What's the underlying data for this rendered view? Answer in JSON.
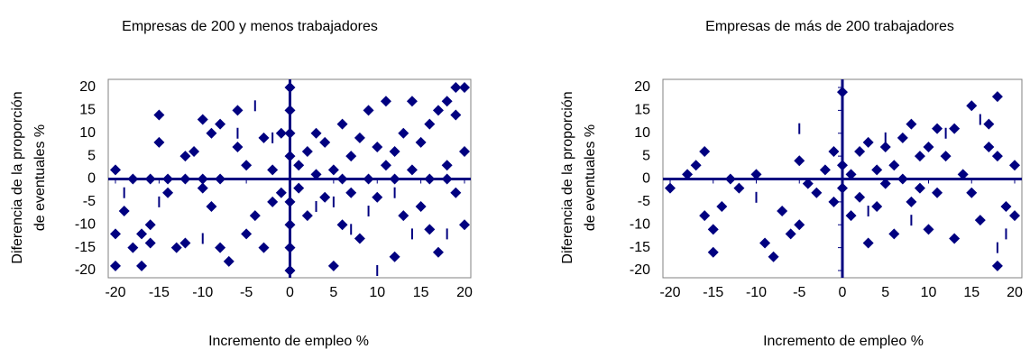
{
  "chart_data": [
    {
      "type": "scatter",
      "title": "Empresas de 200  y menos trabajadores",
      "xlabel": "Incremento de empleo %",
      "ylabel": [
        "Diferencia de la proporción",
        "de eventuales %"
      ],
      "xlim": [
        -20,
        20
      ],
      "ylim": [
        -20,
        20
      ],
      "xticks": [
        -20,
        -15,
        -10,
        -5,
        0,
        5,
        10,
        15,
        20
      ],
      "yticks": [
        -20,
        -15,
        -10,
        -5,
        0,
        5,
        10,
        15,
        20
      ],
      "series": [
        {
          "marker": "diamond",
          "color": "#000080",
          "x": [
            -20,
            -20,
            -20,
            -19,
            -18,
            -17,
            -17,
            -16,
            -16,
            -15,
            -15,
            -14,
            -13,
            -12,
            -12,
            -11,
            -10,
            -10,
            -9,
            -9,
            -8,
            -8,
            -7,
            -6,
            -6,
            -5,
            -5,
            -4,
            -3,
            -3,
            -2,
            -2,
            -1,
            -1,
            0,
            0,
            0,
            0,
            0,
            0,
            0,
            0,
            1,
            1,
            2,
            2,
            3,
            3,
            4,
            4,
            5,
            5,
            6,
            6,
            7,
            7,
            8,
            8,
            9,
            9,
            10,
            10,
            11,
            11,
            12,
            12,
            13,
            13,
            14,
            14,
            15,
            15,
            16,
            16,
            17,
            17,
            18,
            18,
            19,
            19,
            20,
            20,
            20,
            19,
            -14,
            -16,
            -18,
            -12,
            -10,
            -8,
            6,
            12,
            16,
            18
          ],
          "y": [
            2,
            -12,
            -19,
            -7,
            -15,
            -12,
            -19,
            -14,
            -10,
            14,
            8,
            -3,
            -15,
            5,
            -14,
            6,
            13,
            -2,
            10,
            -6,
            12,
            -15,
            -18,
            15,
            7,
            3,
            -12,
            -8,
            9,
            -15,
            2,
            -5,
            10,
            -3,
            20,
            15,
            10,
            5,
            -5,
            -10,
            -15,
            -20,
            3,
            -2,
            6,
            -8,
            10,
            1,
            -4,
            8,
            -19,
            2,
            12,
            -10,
            5,
            -3,
            9,
            -13,
            15,
            0,
            7,
            -4,
            17,
            3,
            -17,
            6,
            10,
            -8,
            17,
            2,
            -6,
            8,
            12,
            -11,
            15,
            -16,
            17,
            3,
            20,
            14,
            20,
            6,
            -10,
            -3,
            0,
            0,
            0,
            0,
            0,
            0,
            0,
            0,
            0,
            0
          ]
        },
        {
          "marker": "dash",
          "color": "#000080",
          "x": [
            -15,
            -10,
            -6,
            -4,
            -2,
            0,
            3,
            5,
            7,
            9,
            10,
            12,
            14,
            18,
            -19
          ],
          "y": [
            -5,
            -13,
            10,
            16,
            9,
            12,
            -6,
            -5,
            -11,
            -7,
            -20,
            -3,
            -12,
            -12,
            -3
          ]
        }
      ]
    },
    {
      "type": "scatter",
      "title": "Empresas de más de 200 trabajadores",
      "xlabel": "Incremento de empleo %",
      "ylabel": [
        "Diferencia de la proporción",
        "de eventuales %"
      ],
      "xlim": [
        -20,
        20
      ],
      "ylim": [
        -20,
        20
      ],
      "xticks": [
        -20,
        -15,
        -10,
        -5,
        0,
        5,
        10,
        15,
        20
      ],
      "yticks": [
        -20,
        -15,
        -10,
        -5,
        0,
        5,
        10,
        15,
        20
      ],
      "series": [
        {
          "marker": "diamond",
          "color": "#000080",
          "x": [
            -20,
            -18,
            -17,
            -16,
            -16,
            -15,
            -15,
            -14,
            -13,
            -12,
            -10,
            -9,
            -8,
            -7,
            -6,
            -5,
            -5,
            -4,
            -3,
            -2,
            -1,
            -1,
            0,
            0,
            0,
            1,
            1,
            2,
            2,
            3,
            3,
            4,
            4,
            5,
            5,
            6,
            6,
            7,
            7,
            8,
            8,
            9,
            9,
            10,
            10,
            11,
            11,
            12,
            13,
            13,
            14,
            15,
            15,
            16,
            17,
            17,
            18,
            18,
            18,
            19,
            20,
            20
          ],
          "y": [
            -2,
            1,
            3,
            6,
            -8,
            -11,
            -16,
            -6,
            0,
            -2,
            1,
            -14,
            -17,
            -7,
            -12,
            4,
            -10,
            -1,
            -3,
            2,
            -5,
            6,
            19,
            3,
            -2,
            -8,
            1,
            6,
            -4,
            8,
            -14,
            2,
            -6,
            7,
            -1,
            3,
            -12,
            9,
            0,
            12,
            -5,
            5,
            -2,
            7,
            -11,
            11,
            -3,
            5,
            11,
            -13,
            1,
            16,
            -3,
            -9,
            12,
            7,
            18,
            -19,
            5,
            -6,
            3,
            -8
          ]
        },
        {
          "marker": "dash",
          "color": "#000080",
          "x": [
            -5,
            -10,
            0,
            3,
            5,
            8,
            12,
            16,
            19,
            18
          ],
          "y": [
            11,
            -4,
            -10,
            -7,
            9,
            -9,
            10,
            13,
            -12,
            -15
          ]
        }
      ]
    }
  ]
}
